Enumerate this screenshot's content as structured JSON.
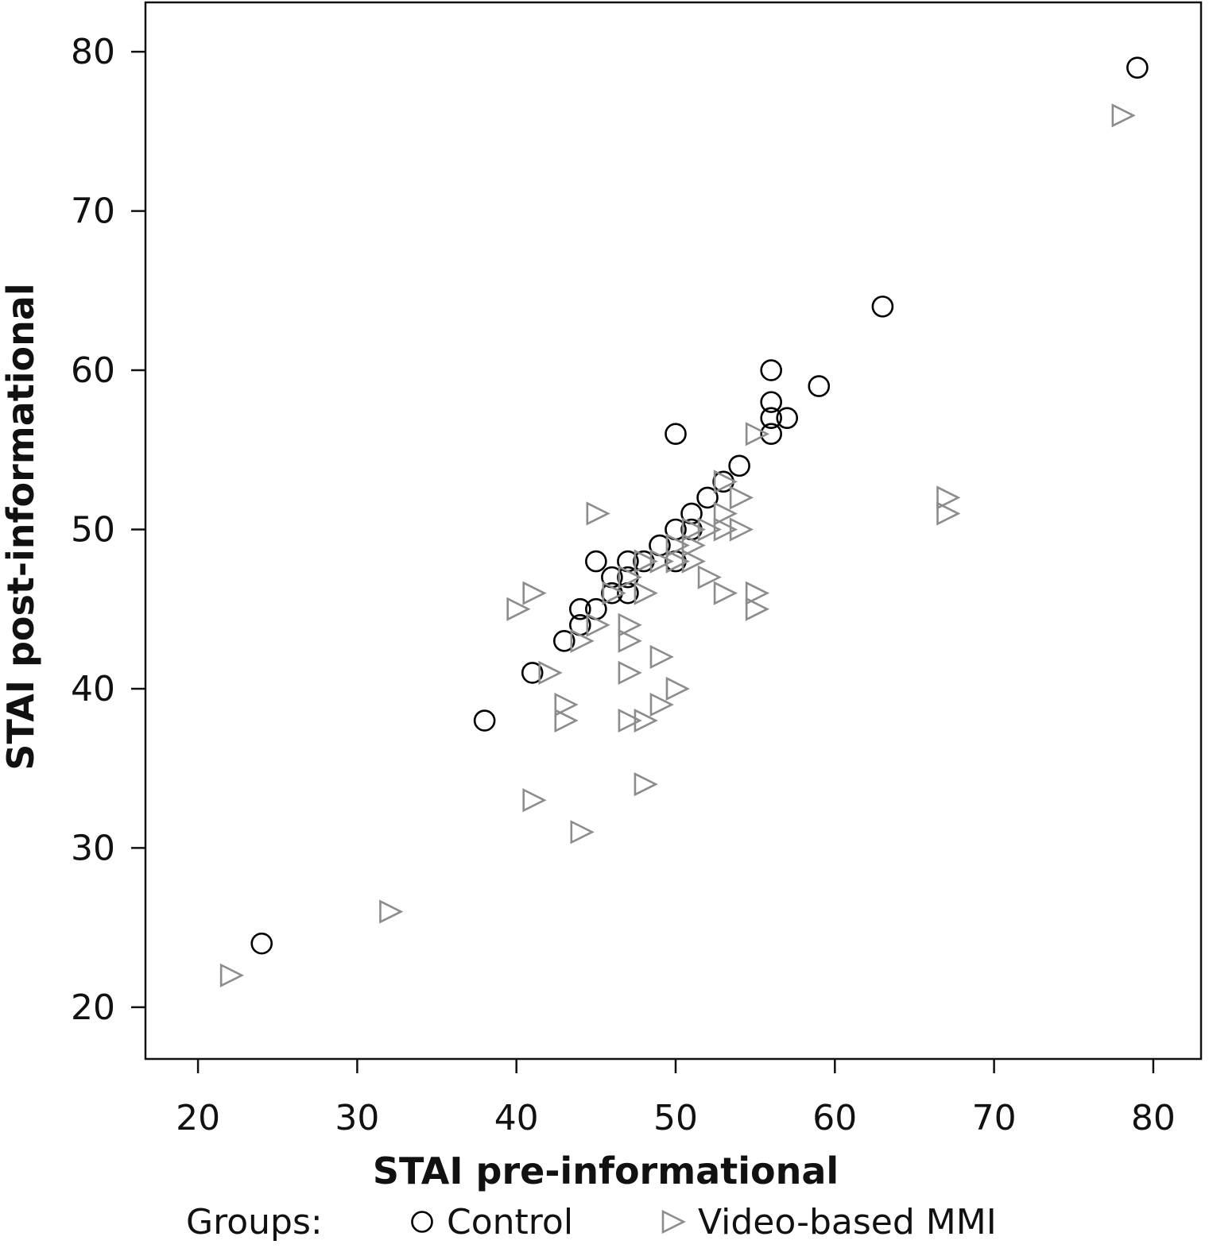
{
  "chart_data": {
    "type": "scatter",
    "xlabel": "STAI pre-informational",
    "ylabel": "STAI post-informational",
    "xlim": [
      16.7,
      83.0
    ],
    "ylim": [
      16.75,
      83.1
    ],
    "xticks": [
      20,
      30,
      40,
      50,
      60,
      70,
      80
    ],
    "yticks": [
      20,
      30,
      40,
      50,
      60,
      70,
      80
    ],
    "grid": false,
    "legend": {
      "title": "Groups:",
      "placement": "bottom",
      "entries": [
        "Control",
        "Video-based MMI"
      ]
    },
    "colors": {
      "control": "#000000",
      "video": "#8c8c8c",
      "axis": "#111111"
    },
    "series": [
      {
        "name": "Control",
        "marker": "circle",
        "points": [
          [
            24,
            24
          ],
          [
            38,
            38
          ],
          [
            41,
            41
          ],
          [
            43,
            43
          ],
          [
            44,
            44
          ],
          [
            44,
            45
          ],
          [
            45,
            45
          ],
          [
            45,
            48
          ],
          [
            46,
            46
          ],
          [
            46,
            47
          ],
          [
            47,
            46
          ],
          [
            47,
            47
          ],
          [
            47,
            48
          ],
          [
            48,
            48
          ],
          [
            49,
            49
          ],
          [
            50,
            48
          ],
          [
            50,
            50
          ],
          [
            50,
            56
          ],
          [
            51,
            50
          ],
          [
            51,
            51
          ],
          [
            52,
            52
          ],
          [
            53,
            53
          ],
          [
            54,
            54
          ],
          [
            56,
            56
          ],
          [
            56,
            57
          ],
          [
            56,
            58
          ],
          [
            56,
            60
          ],
          [
            57,
            57
          ],
          [
            59,
            59
          ],
          [
            63,
            64
          ],
          [
            79,
            79
          ]
        ]
      },
      {
        "name": "Video-based MMI",
        "marker": "triangle-right",
        "points": [
          [
            22,
            22
          ],
          [
            32,
            26
          ],
          [
            40,
            45
          ],
          [
            41,
            33
          ],
          [
            41,
            46
          ],
          [
            42,
            41
          ],
          [
            43,
            38
          ],
          [
            43,
            39
          ],
          [
            44,
            31
          ],
          [
            44,
            43
          ],
          [
            45,
            44
          ],
          [
            45,
            51
          ],
          [
            46,
            46
          ],
          [
            47,
            38
          ],
          [
            47,
            41
          ],
          [
            47,
            43
          ],
          [
            47,
            44
          ],
          [
            47,
            47
          ],
          [
            48,
            34
          ],
          [
            48,
            38
          ],
          [
            48,
            46
          ],
          [
            48,
            48
          ],
          [
            49,
            39
          ],
          [
            49,
            42
          ],
          [
            49,
            48
          ],
          [
            50,
            40
          ],
          [
            50,
            48
          ],
          [
            50,
            49
          ],
          [
            51,
            48
          ],
          [
            51,
            49
          ],
          [
            51,
            50
          ],
          [
            52,
            47
          ],
          [
            52,
            50
          ],
          [
            53,
            46
          ],
          [
            53,
            50
          ],
          [
            53,
            51
          ],
          [
            53,
            53
          ],
          [
            54,
            50
          ],
          [
            54,
            52
          ],
          [
            55,
            45
          ],
          [
            55,
            46
          ],
          [
            55,
            56
          ],
          [
            67,
            51
          ],
          [
            67,
            52
          ],
          [
            78,
            76
          ]
        ]
      }
    ]
  }
}
